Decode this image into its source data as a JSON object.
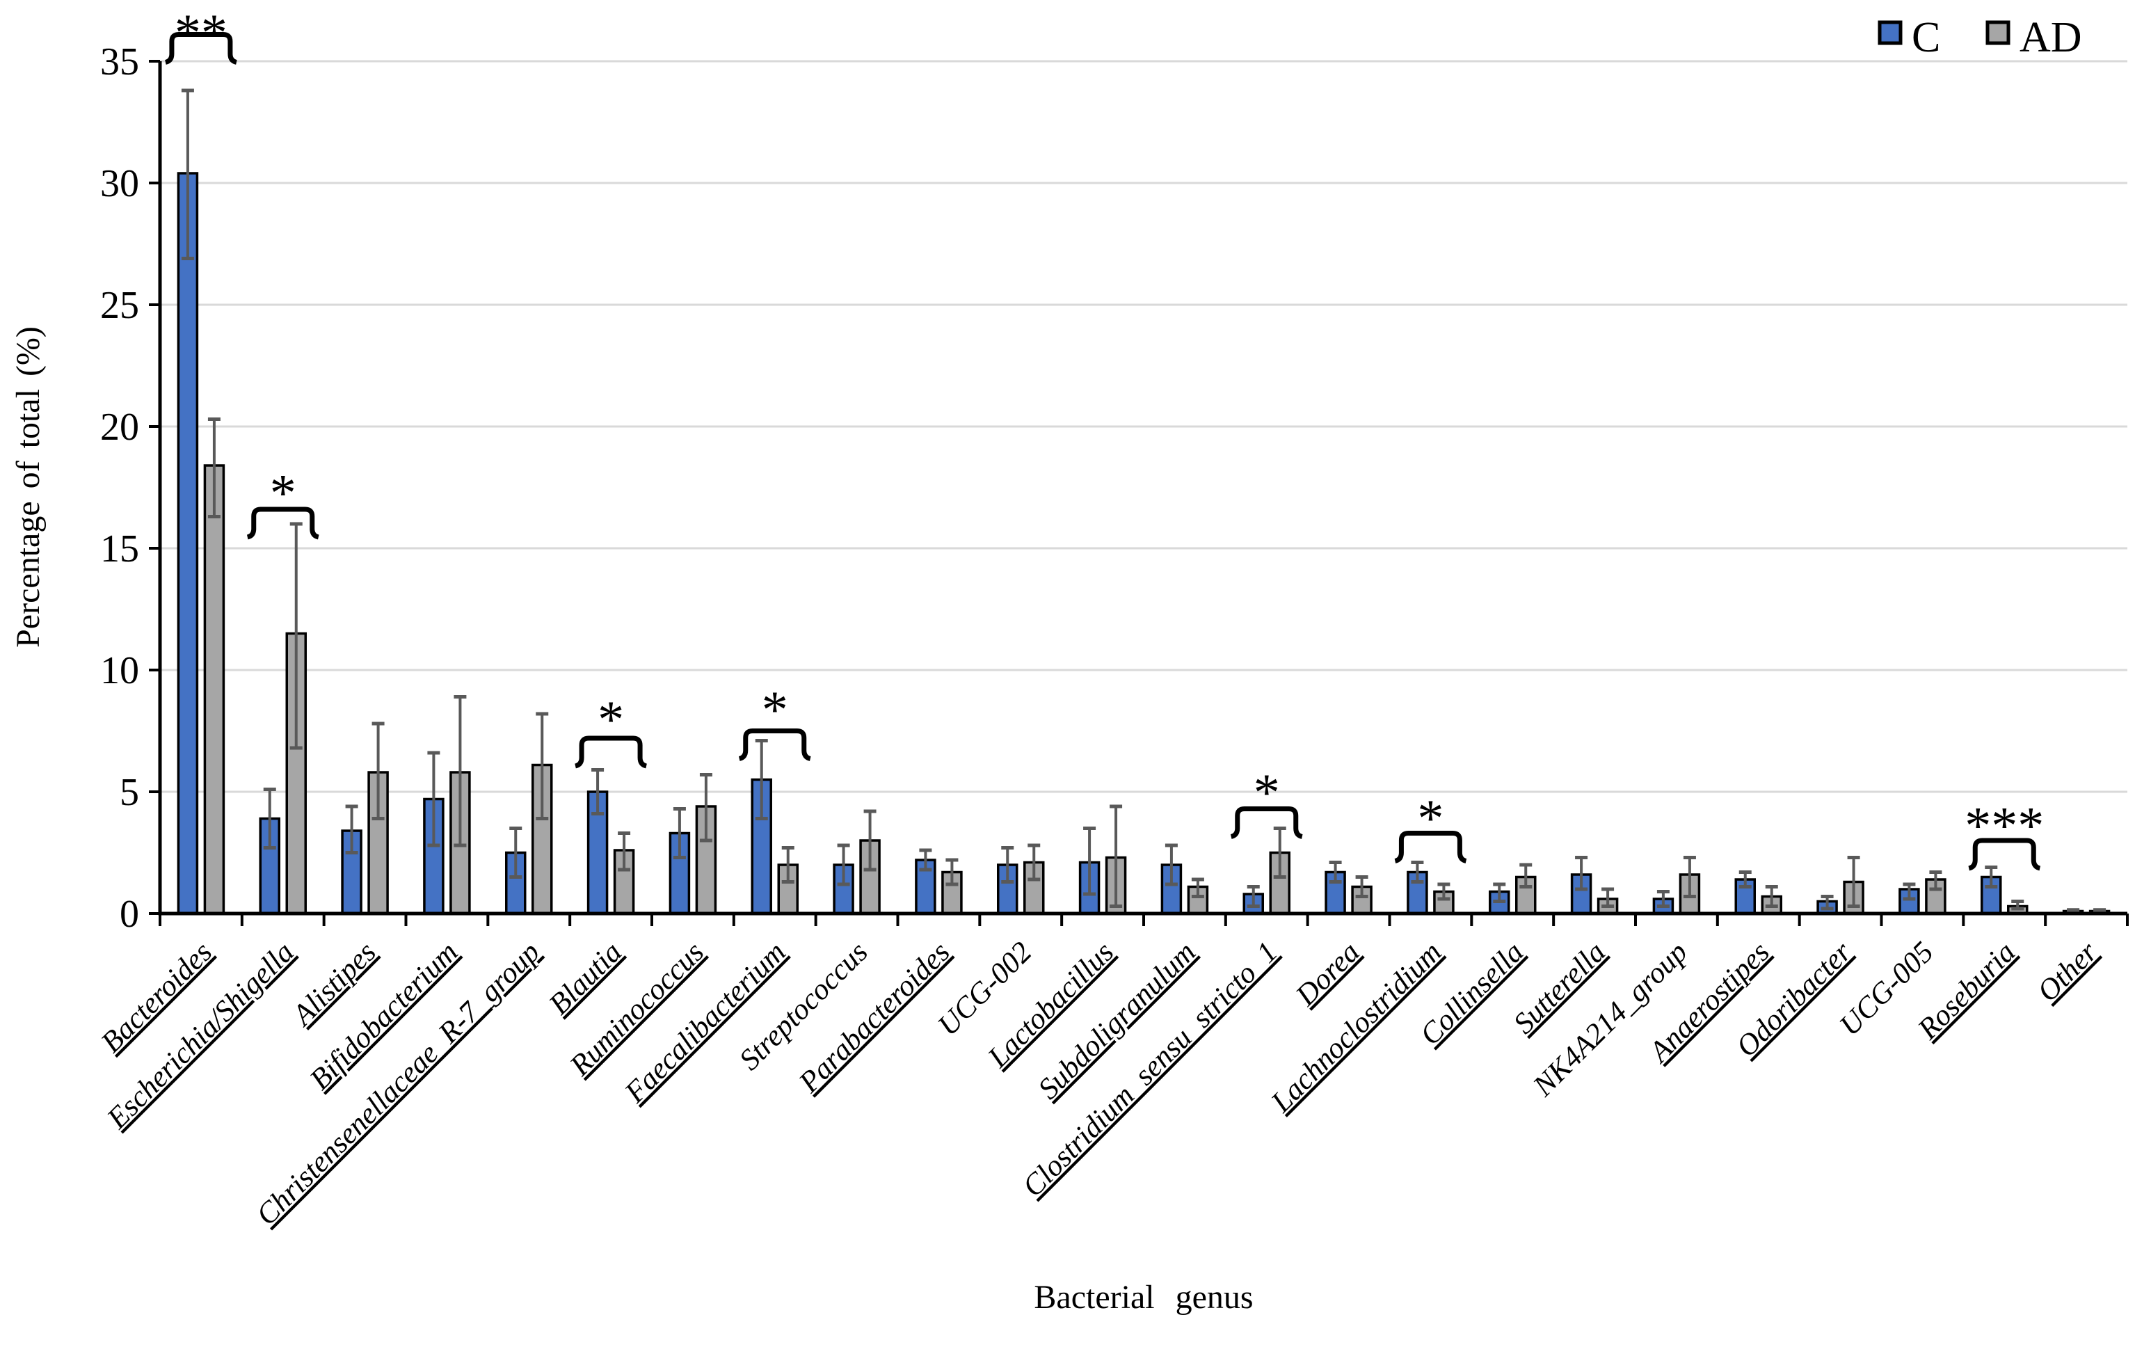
{
  "figure": {
    "legend": [
      {
        "label": "C",
        "color": "#4472C4"
      },
      {
        "label": "AD",
        "color": "#A6A6A6"
      }
    ]
  },
  "colors": {
    "series_c": "#4472C4",
    "series_ad": "#A6A6A6",
    "error_bar": "#595959",
    "gridline": "#D9D9D9",
    "axis": "#000000",
    "background": "#FFFFFF"
  },
  "chart_data": {
    "type": "bar",
    "title": "",
    "xlabel": "Bacterial genus",
    "ylabel": "Percentage of total (%)",
    "ylim": [
      0,
      35
    ],
    "yticks": [
      0,
      5,
      10,
      15,
      20,
      25,
      30,
      35
    ],
    "grid": true,
    "legend_position": "top-right",
    "categories": [
      {
        "label": "Bacteroides",
        "underline": true
      },
      {
        "label": "Escherichia/Shigella",
        "underline": true
      },
      {
        "label": "Alistipes",
        "underline": true
      },
      {
        "label": "Bifidobacterium",
        "underline": true
      },
      {
        "label": "Christensenellaceae_R-7_group",
        "underline": true
      },
      {
        "label": "Blautia",
        "underline": true
      },
      {
        "label": "Ruminococcus",
        "underline": true
      },
      {
        "label": "Faecalibacterium",
        "underline": true
      },
      {
        "label": "Streptococcus",
        "underline": false
      },
      {
        "label": "Parabacteroides",
        "underline": true
      },
      {
        "label": "UCG-002",
        "underline": false
      },
      {
        "label": "Lactobacillus",
        "underline": true
      },
      {
        "label": "Subdoligranulum",
        "underline": true
      },
      {
        "label": "Clostridium_sensu_stricto_1",
        "underline": true
      },
      {
        "label": "Dorea",
        "underline": true
      },
      {
        "label": "Lachnoclostridium",
        "underline": true
      },
      {
        "label": "Collinsella",
        "underline": true
      },
      {
        "label": "Sutterella",
        "underline": true
      },
      {
        "label": "NK4A214_group",
        "underline": false
      },
      {
        "label": "Anaerostipes",
        "underline": true
      },
      {
        "label": "Odoribacter",
        "underline": true
      },
      {
        "label": "UCG-005",
        "underline": false
      },
      {
        "label": "Roseburia",
        "underline": true
      },
      {
        "label": "Other",
        "underline": true
      }
    ],
    "series": [
      {
        "name": "C",
        "color": "#4472C4",
        "values": [
          30.4,
          3.9,
          3.4,
          4.7,
          2.5,
          5.0,
          3.3,
          5.5,
          2.0,
          2.2,
          2.0,
          2.1,
          2.0,
          0.8,
          1.7,
          1.7,
          0.9,
          1.6,
          0.6,
          1.4,
          0.5,
          1.0,
          1.5,
          0.1
        ],
        "error_low": [
          26.9,
          2.7,
          2.5,
          2.8,
          1.5,
          4.1,
          2.3,
          3.9,
          1.2,
          1.8,
          1.3,
          0.8,
          1.2,
          0.3,
          1.3,
          1.3,
          0.5,
          1.0,
          0.3,
          1.1,
          0.2,
          0.6,
          1.1,
          0.05
        ],
        "error_high": [
          33.8,
          5.1,
          4.4,
          6.6,
          3.5,
          5.9,
          4.3,
          7.1,
          2.8,
          2.6,
          2.7,
          3.5,
          2.8,
          1.1,
          2.1,
          2.1,
          1.2,
          2.3,
          0.9,
          1.7,
          0.7,
          1.2,
          1.9,
          0.15
        ]
      },
      {
        "name": "AD",
        "color": "#A6A6A6",
        "values": [
          18.4,
          11.5,
          5.8,
          5.8,
          6.1,
          2.6,
          4.4,
          2.0,
          3.0,
          1.7,
          2.1,
          2.3,
          1.1,
          2.5,
          1.1,
          0.9,
          1.5,
          0.6,
          1.6,
          0.7,
          1.3,
          1.4,
          0.3,
          0.1
        ],
        "error_low": [
          16.3,
          6.8,
          3.9,
          2.8,
          3.9,
          1.8,
          3.0,
          1.3,
          1.8,
          1.2,
          1.4,
          0.3,
          0.7,
          1.5,
          0.7,
          0.6,
          1.1,
          0.3,
          0.7,
          0.3,
          0.3,
          1.0,
          0.2,
          0.05
        ],
        "error_high": [
          20.3,
          16.0,
          7.8,
          8.9,
          8.2,
          3.3,
          5.7,
          2.7,
          4.2,
          2.2,
          2.8,
          4.4,
          1.4,
          3.5,
          1.5,
          1.2,
          2.0,
          1.0,
          2.3,
          1.1,
          2.3,
          1.7,
          0.5,
          0.15
        ]
      }
    ],
    "significance": [
      {
        "category": "Bacteroides",
        "label": "**",
        "bracket_y": 36.1,
        "star_y": 36.7
      },
      {
        "category": "Escherichia/Shigella",
        "label": "*",
        "bracket_y": 16.6,
        "star_y": 17.8
      },
      {
        "category": "Blautia",
        "label": "*",
        "bracket_y": 7.2,
        "star_y": 8.5
      },
      {
        "category": "Faecalibacterium",
        "label": "*",
        "bracket_y": 7.5,
        "star_y": 8.9
      },
      {
        "category": "Clostridium_sensu_stricto_1",
        "label": "*",
        "bracket_y": 4.3,
        "star_y": 5.5
      },
      {
        "category": "Lachnoclostridium",
        "label": "*",
        "bracket_y": 3.3,
        "star_y": 4.45
      },
      {
        "category": "Roseburia",
        "label": "***",
        "bracket_y": 3.0,
        "star_y": 4.15
      }
    ]
  }
}
